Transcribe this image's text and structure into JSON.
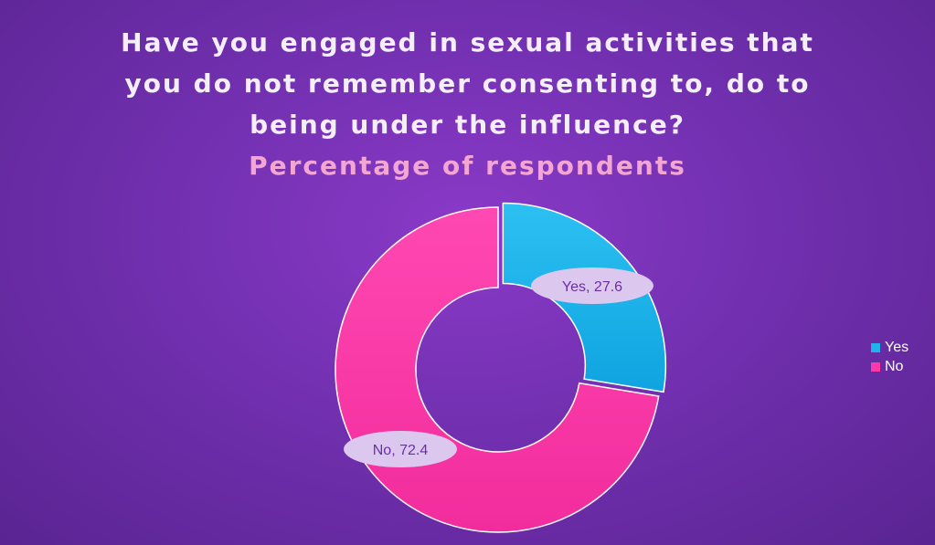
{
  "chart_data": {
    "type": "pie",
    "variant": "doughnut",
    "title_lines": [
      "Have you engaged in sexual activities that",
      "you do not remember consenting to, do to",
      "being under the influence?"
    ],
    "subtitle": "Percentage of respondents",
    "categories": [
      "Yes",
      "No"
    ],
    "values": [
      27.6,
      72.4
    ],
    "data_labels": [
      "Yes, 27.6",
      "No, 72.4"
    ],
    "colors": [
      "#1eb3ec",
      "#ff3aa8"
    ],
    "legend_position": "right",
    "exploded_slice": "Yes"
  },
  "colors": {
    "background": "#7a33b8",
    "title_text": "#f4eef9",
    "subtitle_text": "#f3a6d4",
    "label_bubble": "#dcc8ee",
    "label_text": "#6a2fa4"
  }
}
